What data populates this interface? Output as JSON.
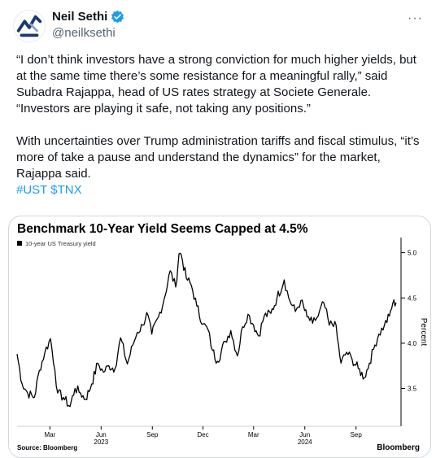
{
  "author": {
    "name": "Neil Sethi",
    "handle": "@neilksethi",
    "verified_color": "#1d9bf0",
    "avatar_icon": "logo-icon"
  },
  "menu": {
    "label": "···"
  },
  "tweet": {
    "paragraph1": "“I don’t think investors have a strong conviction for much higher yields, but at the same time there’s some resistance for a meaningful rally,” said Subadra Rajappa, head of US rates strategy at Societe Generale. “Investors are playing it safe, not taking any positions.”",
    "paragraph2": "With uncertainties over Trump administration tariffs and fiscal stimulus, “it’s more of take a pause and understand the dynamics” for the market, Rajappa said.",
    "hashtags": "#UST $TNX"
  },
  "chart_data": {
    "type": "line",
    "title": "Benchmark 10-Year Yield Seems Capped at 4.5%",
    "legend": "10-year US Treasury yield",
    "ylabel": "Percent",
    "ylim": [
      3.1,
      5.15
    ],
    "yticks": [
      {
        "v": 3.5,
        "label": "3.5"
      },
      {
        "v": 4.0,
        "label": "4.0"
      },
      {
        "v": 4.5,
        "label": "4.5"
      },
      {
        "v": 5.0,
        "label": "5.0"
      }
    ],
    "xlim": [
      "2023-01-01",
      "2024-11-15"
    ],
    "xticks": [
      {
        "date": "2023-03-01",
        "label": "Mar"
      },
      {
        "date": "2023-06-01",
        "label": "Jun"
      },
      {
        "date": "2023-09-01",
        "label": "Sep"
      },
      {
        "date": "2023-12-01",
        "label": "Dec"
      },
      {
        "date": "2024-03-01",
        "label": "Mar"
      },
      {
        "date": "2024-06-01",
        "label": "Jun"
      },
      {
        "date": "2024-09-01",
        "label": "Sep"
      }
    ],
    "years": [
      {
        "date": "2023-06-01",
        "label": "2023"
      },
      {
        "date": "2024-06-01",
        "label": "2024"
      }
    ],
    "source": "Source: Bloomberg",
    "brand": "Bloomberg",
    "line_color": "#000000",
    "series": [
      {
        "points": [
          [
            "2023-01-01",
            3.88
          ],
          [
            "2023-01-10",
            3.55
          ],
          [
            "2023-01-20",
            3.45
          ],
          [
            "2023-02-01",
            3.4
          ],
          [
            "2023-02-10",
            3.7
          ],
          [
            "2023-02-20",
            3.9
          ],
          [
            "2023-03-02",
            4.05
          ],
          [
            "2023-03-10",
            3.7
          ],
          [
            "2023-03-15",
            3.45
          ],
          [
            "2023-03-25",
            3.4
          ],
          [
            "2023-04-06",
            3.3
          ],
          [
            "2023-04-15",
            3.5
          ],
          [
            "2023-04-25",
            3.45
          ],
          [
            "2023-05-04",
            3.38
          ],
          [
            "2023-05-15",
            3.55
          ],
          [
            "2023-05-26",
            3.78
          ],
          [
            "2023-06-05",
            3.68
          ],
          [
            "2023-06-15",
            3.75
          ],
          [
            "2023-06-26",
            3.72
          ],
          [
            "2023-07-06",
            4.06
          ],
          [
            "2023-07-18",
            3.77
          ],
          [
            "2023-07-28",
            3.98
          ],
          [
            "2023-08-05",
            4.12
          ],
          [
            "2023-08-15",
            4.2
          ],
          [
            "2023-08-22",
            4.34
          ],
          [
            "2023-08-31",
            4.1
          ],
          [
            "2023-09-12",
            4.29
          ],
          [
            "2023-09-22",
            4.48
          ],
          [
            "2023-10-03",
            4.8
          ],
          [
            "2023-10-13",
            4.62
          ],
          [
            "2023-10-19",
            4.99
          ],
          [
            "2023-10-23",
            4.98
          ],
          [
            "2023-11-01",
            4.72
          ],
          [
            "2023-11-10",
            4.64
          ],
          [
            "2023-11-20",
            4.41
          ],
          [
            "2023-12-01",
            4.21
          ],
          [
            "2023-12-10",
            4.15
          ],
          [
            "2023-12-18",
            3.92
          ],
          [
            "2023-12-27",
            3.8
          ],
          [
            "2024-01-10",
            4.02
          ],
          [
            "2024-01-20",
            4.14
          ],
          [
            "2024-02-01",
            3.86
          ],
          [
            "2024-02-10",
            4.18
          ],
          [
            "2024-02-20",
            4.32
          ],
          [
            "2024-03-01",
            4.2
          ],
          [
            "2024-03-10",
            4.08
          ],
          [
            "2024-03-20",
            4.3
          ],
          [
            "2024-04-01",
            4.33
          ],
          [
            "2024-04-12",
            4.5
          ],
          [
            "2024-04-25",
            4.7
          ],
          [
            "2024-05-03",
            4.5
          ],
          [
            "2024-05-15",
            4.35
          ],
          [
            "2024-05-25",
            4.47
          ],
          [
            "2024-06-05",
            4.29
          ],
          [
            "2024-06-15",
            4.22
          ],
          [
            "2024-06-25",
            4.3
          ],
          [
            "2024-07-05",
            4.45
          ],
          [
            "2024-07-15",
            4.2
          ],
          [
            "2024-07-25",
            4.24
          ],
          [
            "2024-08-05",
            3.78
          ],
          [
            "2024-08-15",
            3.9
          ],
          [
            "2024-08-25",
            3.82
          ],
          [
            "2024-09-05",
            3.72
          ],
          [
            "2024-09-16",
            3.62
          ],
          [
            "2024-09-25",
            3.78
          ],
          [
            "2024-10-05",
            3.98
          ],
          [
            "2024-10-12",
            4.1
          ],
          [
            "2024-10-22",
            4.2
          ],
          [
            "2024-10-31",
            4.3
          ],
          [
            "2024-11-06",
            4.44
          ],
          [
            "2024-11-12",
            4.45
          ]
        ]
      }
    ]
  }
}
